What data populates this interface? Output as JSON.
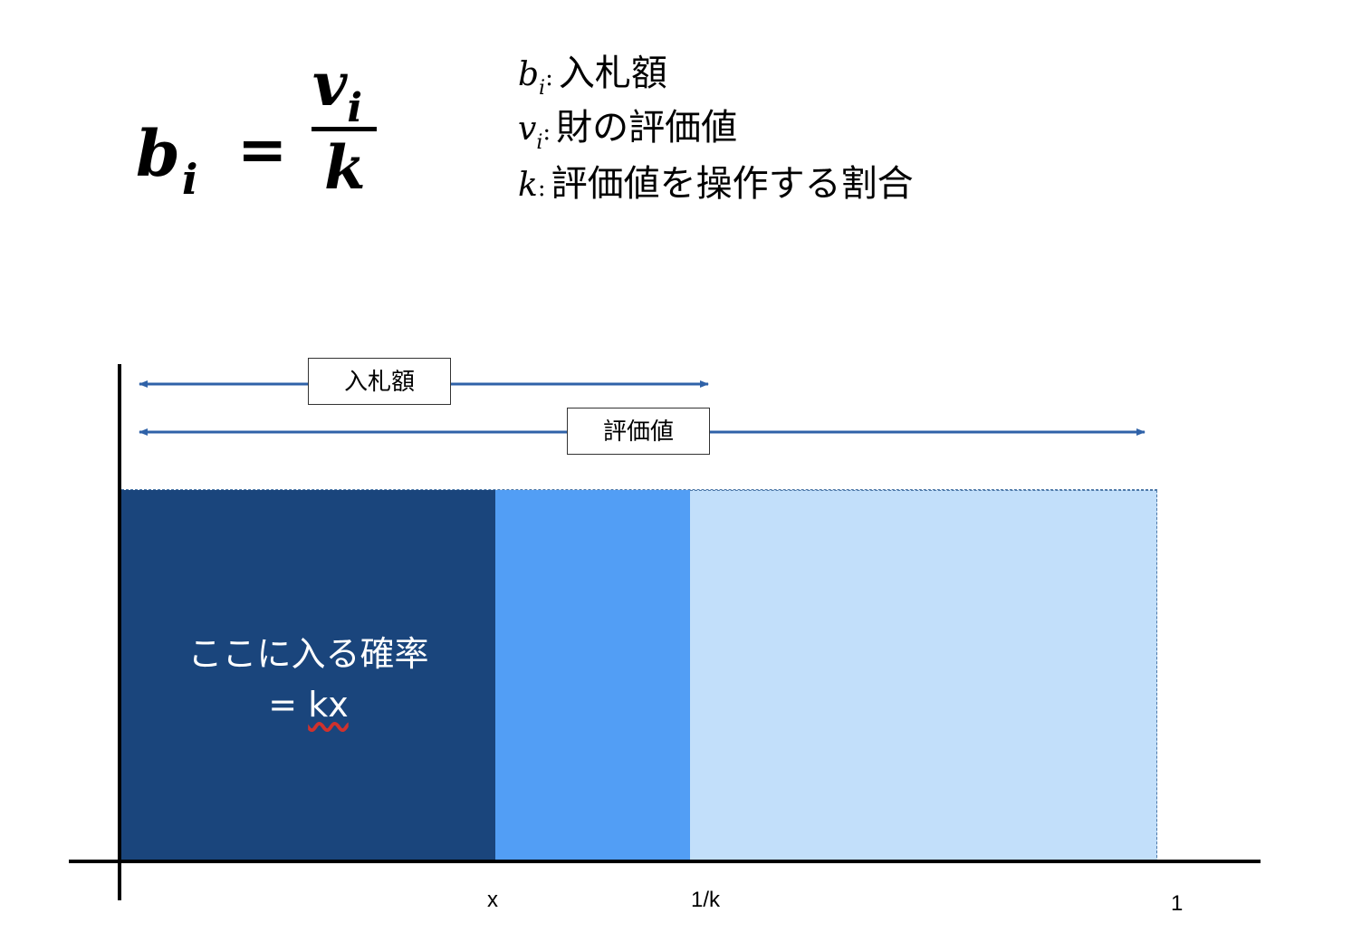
{
  "formula": {
    "lhs_base": "b",
    "lhs_sub": "i",
    "equals": "=",
    "numerator_base": "v",
    "numerator_sub": "i",
    "denominator": "k"
  },
  "definitions": [
    {
      "symbol": "b",
      "sub": "i",
      "colon": ":",
      "text": "入札額"
    },
    {
      "symbol": "v",
      "sub": "i",
      "colon": ":",
      "text": "財の評価値"
    },
    {
      "symbol": "k",
      "sub": "",
      "colon": ":",
      "text": "評価値を操作する割合"
    }
  ],
  "diagram": {
    "bid_arrow_label": "入札額",
    "value_arrow_label": "評価値",
    "probability_label_line1": "ここに入る確率",
    "probability_label_eq": "= ",
    "probability_label_kx": "kx",
    "ticks": {
      "x": "x",
      "one_over_k": "1/k",
      "one": "1"
    },
    "colors": {
      "bid_region": "#1a457c",
      "between_region": "#529ef5",
      "rest_region": "#c2dffa",
      "arrow": "#2f62a8"
    }
  }
}
